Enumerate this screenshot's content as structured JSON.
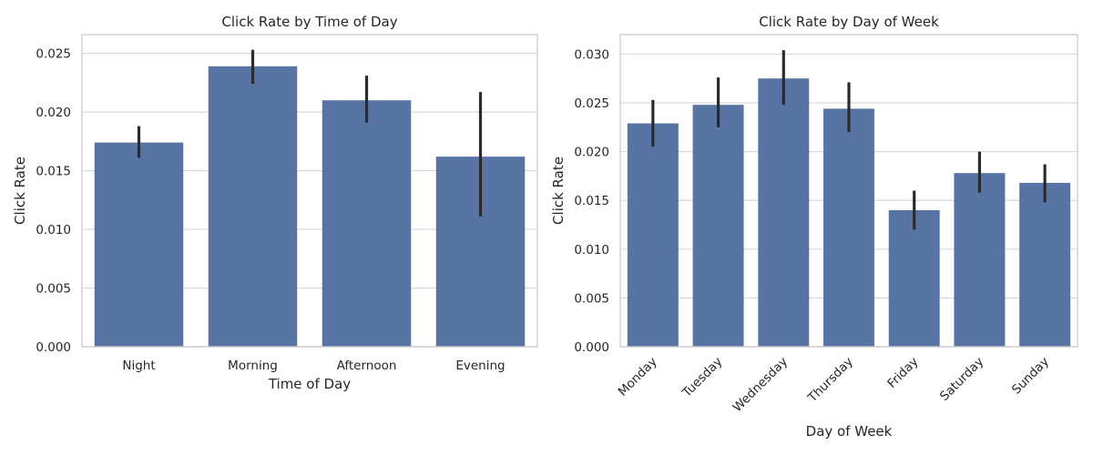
{
  "chart_data": [
    {
      "type": "bar",
      "title": "Click Rate by Time of Day",
      "xlabel": "Time of Day",
      "ylabel": "Click Rate",
      "categories": [
        "Night",
        "Morning",
        "Afternoon",
        "Evening"
      ],
      "values": [
        0.0174,
        0.0239,
        0.021,
        0.0162
      ],
      "error_low": [
        0.0161,
        0.0224,
        0.0191,
        0.0111
      ],
      "error_high": [
        0.0188,
        0.0253,
        0.0231,
        0.0217
      ],
      "ylim": [
        0,
        0.0266
      ],
      "yticks": [
        0,
        0.005,
        0.01,
        0.015,
        0.02,
        0.025
      ],
      "ytick_labels": [
        "0.000",
        "0.005",
        "0.010",
        "0.015",
        "0.020",
        "0.025"
      ],
      "grid": "horizontal",
      "x_tick_rotation": 0,
      "color": "#5874a4",
      "error_color": "#2b2b2b"
    },
    {
      "type": "bar",
      "title": "Click Rate by Day of Week",
      "xlabel": "Day of Week",
      "ylabel": "Click Rate",
      "categories": [
        "Monday",
        "Tuesday",
        "Wednesday",
        "Thursday",
        "Friday",
        "Saturday",
        "Sunday"
      ],
      "values": [
        0.0229,
        0.0248,
        0.0275,
        0.0244,
        0.014,
        0.0178,
        0.0168
      ],
      "error_low": [
        0.0205,
        0.0225,
        0.0248,
        0.022,
        0.012,
        0.0158,
        0.0148
      ],
      "error_high": [
        0.0253,
        0.0276,
        0.0304,
        0.0271,
        0.016,
        0.02,
        0.0187
      ],
      "ylim": [
        0,
        0.032
      ],
      "yticks": [
        0,
        0.005,
        0.01,
        0.015,
        0.02,
        0.025,
        0.03
      ],
      "ytick_labels": [
        "0.000",
        "0.005",
        "0.010",
        "0.015",
        "0.020",
        "0.025",
        "0.030"
      ],
      "grid": "horizontal",
      "x_tick_rotation": -45,
      "color": "#5874a4",
      "error_color": "#2b2b2b"
    }
  ]
}
